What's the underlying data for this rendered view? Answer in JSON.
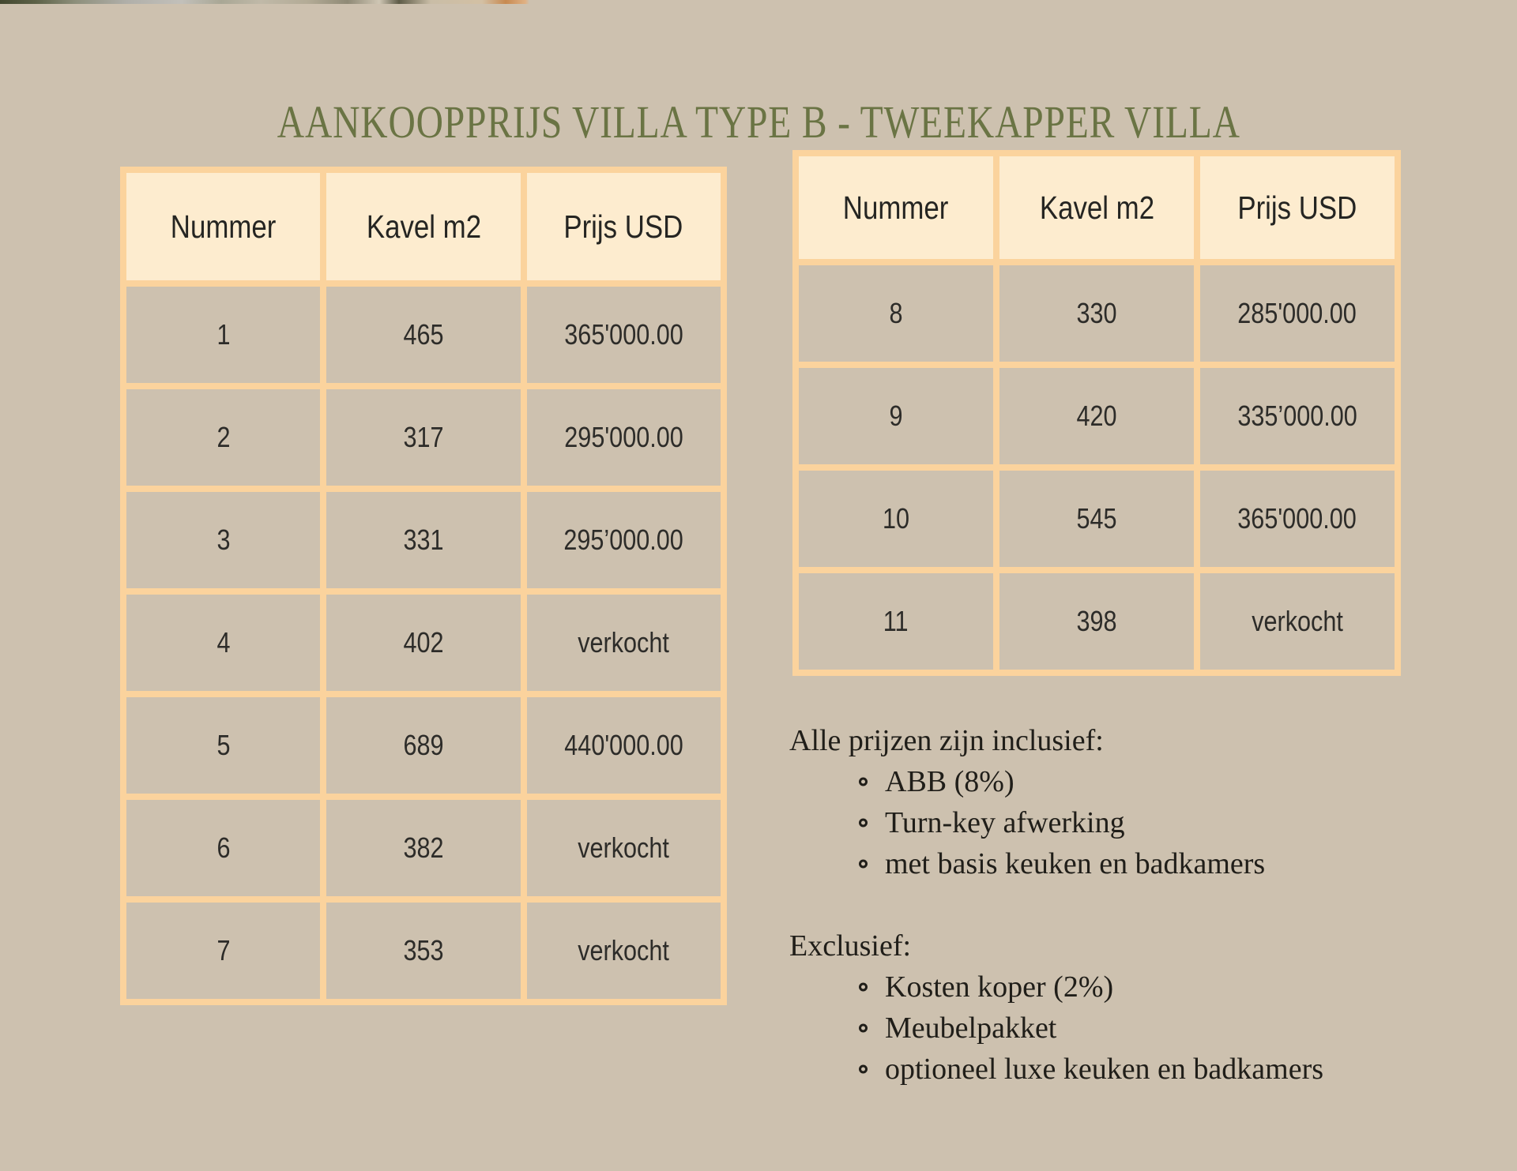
{
  "page": {
    "title": "AANKOOPPRIJS VILLA TYPE B - TWEEKAPPER VILLA",
    "colors": {
      "background": "#cdc1af",
      "table_border": "#fbd39d",
      "header_background": "#fdeccf",
      "title_green": "#6a7444"
    }
  },
  "tables": {
    "left": {
      "headers": [
        "Nummer",
        "Kavel m2",
        "Prijs USD"
      ],
      "rows": [
        [
          "1",
          "465",
          "365'000.00"
        ],
        [
          "2",
          "317",
          "295'000.00"
        ],
        [
          "3",
          "331",
          "295’000.00"
        ],
        [
          "4",
          "402",
          "verkocht"
        ],
        [
          "5",
          "689",
          "440'000.00"
        ],
        [
          "6",
          "382",
          "verkocht"
        ],
        [
          "7",
          "353",
          "verkocht"
        ]
      ]
    },
    "right": {
      "headers": [
        "Nummer",
        "Kavel m2",
        "Prijs USD"
      ],
      "rows": [
        [
          "8",
          "330",
          "285'000.00"
        ],
        [
          "9",
          "420",
          "335’000.00"
        ],
        [
          "10",
          "545",
          "365'000.00"
        ],
        [
          "11",
          "398",
          "verkocht"
        ]
      ]
    }
  },
  "notes": {
    "included": {
      "heading": "Alle prijzen zijn inclusief:",
      "items": [
        "ABB (8%)",
        "Turn-key afwerking",
        "met basis keuken en badkamers"
      ]
    },
    "excluded": {
      "heading": "Exclusief:",
      "items": [
        "Kosten koper (2%)",
        "Meubelpakket",
        "optioneel luxe keuken en badkamers"
      ]
    }
  }
}
